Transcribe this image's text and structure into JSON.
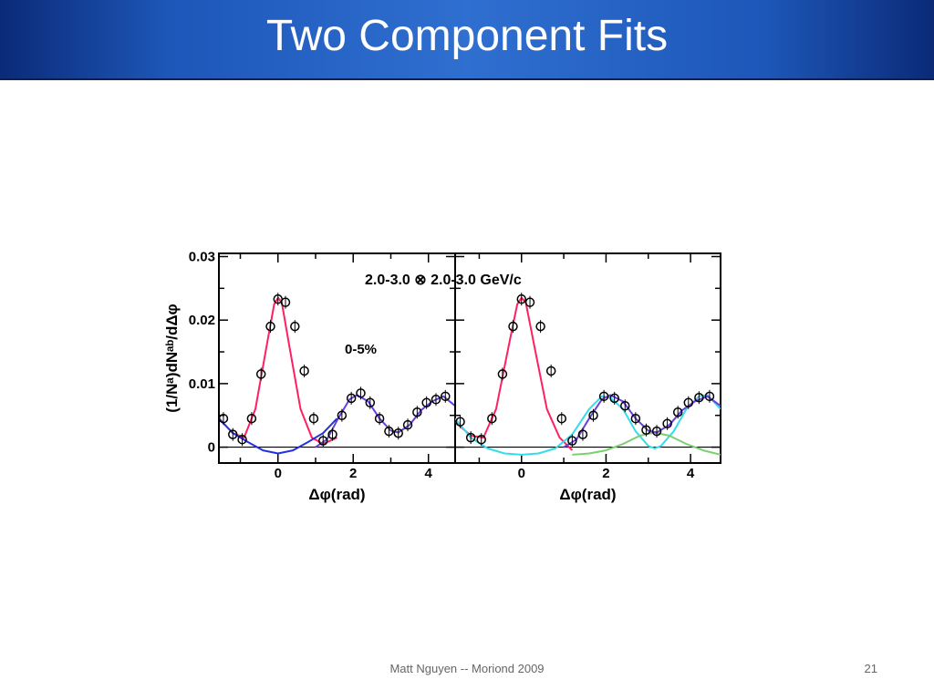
{
  "slide": {
    "title": "Two Component Fits",
    "footer": "Matt Nguyen -- Moriond 2009",
    "slide_number": "21"
  },
  "colors": {
    "title_bar": "#1d57b8",
    "near_side_fit": "#ff2060",
    "away_side_fit": "#6a3fe0",
    "away_component": "#35dcec",
    "shoulder_component": "#7ad070",
    "background_fit": "#2233dd",
    "data_points": "#000000"
  },
  "chart_data": [
    {
      "type": "scatter",
      "panel": "left",
      "annotations": [
        "2.0-3.0 ⊗ 2.0-3.0 GeV/c",
        "0-5%"
      ],
      "xlabel": "Δφ(rad)",
      "ylabel": "(1/Nᵃ)dNᵃᵇ/dΔφ",
      "xticks": [
        "0",
        "2",
        "4"
      ],
      "yticks": [
        "0",
        "0.01",
        "0.02",
        "0.03"
      ],
      "xlim": [
        -1.57,
        4.71
      ],
      "ylim": [
        -0.0025,
        0.0305
      ],
      "points": {
        "x": [
          -1.45,
          -1.2,
          -0.95,
          -0.7,
          -0.45,
          -0.2,
          0.0,
          0.2,
          0.45,
          0.7,
          0.95,
          1.2,
          1.45,
          1.7,
          1.95,
          2.2,
          2.45,
          2.7,
          2.95,
          3.2,
          3.45,
          3.7,
          3.95,
          4.2,
          4.45
        ],
        "y": [
          0.0045,
          0.002,
          0.0012,
          0.0045,
          0.0115,
          0.019,
          0.0233,
          0.0228,
          0.019,
          0.012,
          0.0045,
          0.001,
          0.002,
          0.005,
          0.0077,
          0.0085,
          0.007,
          0.0045,
          0.0025,
          0.0022,
          0.0035,
          0.0055,
          0.007,
          0.0075,
          0.008
        ]
      },
      "series": [
        {
          "role": "near-side",
          "color": "#ff2060",
          "x": [
            -1.57,
            -1.2,
            -0.9,
            -0.6,
            -0.3,
            -0.1,
            0.0,
            0.1,
            0.3,
            0.6,
            0.9,
            1.2,
            1.57
          ],
          "y": [
            0.0045,
            0.0022,
            0.0015,
            0.006,
            0.016,
            0.0225,
            0.0235,
            0.0228,
            0.016,
            0.006,
            0.0015,
            0.0005,
            0.0015
          ]
        },
        {
          "role": "away-side",
          "color": "#6a3fe0",
          "x": [
            1.0,
            1.3,
            1.6,
            1.9,
            2.1,
            2.4,
            2.7,
            3.0,
            3.2,
            3.5,
            3.8,
            4.1,
            4.4,
            4.71
          ],
          "y": [
            0.0,
            0.0012,
            0.0045,
            0.0075,
            0.0082,
            0.0072,
            0.0045,
            0.0026,
            0.0023,
            0.0035,
            0.0058,
            0.0072,
            0.008,
            0.0065
          ]
        },
        {
          "role": "background",
          "color": "#2233dd",
          "x": [
            -1.57,
            -1.2,
            -0.8,
            -0.4,
            0.0,
            0.4,
            0.8,
            1.2,
            1.57
          ],
          "y": [
            0.0045,
            0.0022,
            0.0008,
            -0.0005,
            -0.001,
            -0.0005,
            0.0008,
            0.0022,
            0.0045
          ]
        }
      ]
    },
    {
      "type": "scatter",
      "panel": "right",
      "xlabel": "Δφ(rad)",
      "xticks": [
        "0",
        "2",
        "4"
      ],
      "xlim": [
        -1.57,
        4.71
      ],
      "ylim": [
        -0.0025,
        0.0305
      ],
      "points": {
        "x": [
          -1.45,
          -1.2,
          -0.95,
          -0.7,
          -0.45,
          -0.2,
          0.0,
          0.2,
          0.45,
          0.7,
          0.95,
          1.2,
          1.45,
          1.7,
          1.95,
          2.2,
          2.45,
          2.7,
          2.95,
          3.2,
          3.45,
          3.7,
          3.95,
          4.2,
          4.45
        ],
        "y": [
          0.004,
          0.0015,
          0.0012,
          0.0045,
          0.0115,
          0.019,
          0.0233,
          0.0228,
          0.019,
          0.012,
          0.0045,
          0.001,
          0.002,
          0.005,
          0.008,
          0.0077,
          0.0065,
          0.0045,
          0.0027,
          0.0025,
          0.0037,
          0.0055,
          0.007,
          0.0078,
          0.008
        ]
      },
      "series": [
        {
          "role": "near-side",
          "color": "#ff2060",
          "x": [
            -1.57,
            -1.2,
            -0.9,
            -0.6,
            -0.3,
            -0.1,
            0.0,
            0.1,
            0.3,
            0.6,
            0.9,
            1.2
          ],
          "y": [
            0.004,
            0.0018,
            0.0015,
            0.006,
            0.016,
            0.0225,
            0.0235,
            0.0228,
            0.016,
            0.006,
            0.0015,
            -0.0005
          ]
        },
        {
          "role": "away-component",
          "color": "#35dcec",
          "x": [
            -1.57,
            -1.2,
            -0.8,
            -0.4,
            0.0,
            0.4,
            0.8,
            1.2,
            1.6,
            1.9,
            2.1,
            2.4,
            2.7,
            3.0,
            3.15,
            3.3,
            3.6,
            3.9,
            4.2,
            4.4,
            4.71
          ],
          "y": [
            0.0045,
            0.0015,
            -0.0002,
            -0.001,
            -0.0012,
            -0.001,
            -0.0002,
            0.002,
            0.006,
            0.008,
            0.0078,
            0.006,
            0.0025,
            0.0002,
            -0.0002,
            0.0002,
            0.0025,
            0.006,
            0.008,
            0.0082,
            0.006
          ]
        },
        {
          "role": "shoulder-component",
          "color": "#7ad070",
          "x": [
            1.2,
            1.6,
            2.0,
            2.4,
            2.8,
            3.14,
            3.5,
            3.9,
            4.3,
            4.71
          ],
          "y": [
            -0.0012,
            -0.001,
            -0.0005,
            0.0005,
            0.0018,
            0.0023,
            0.0018,
            0.0005,
            -0.0005,
            -0.0012
          ]
        },
        {
          "role": "total",
          "color": "#6a3fe0",
          "x": [
            1.0,
            1.3,
            1.6,
            1.9,
            2.1,
            2.4,
            2.7,
            3.0,
            3.2,
            3.5,
            3.8,
            4.1,
            4.4,
            4.71
          ],
          "y": [
            0.0,
            0.0012,
            0.0045,
            0.0075,
            0.0082,
            0.0072,
            0.0045,
            0.0026,
            0.0023,
            0.0035,
            0.0058,
            0.0072,
            0.008,
            0.0065
          ]
        }
      ]
    }
  ]
}
